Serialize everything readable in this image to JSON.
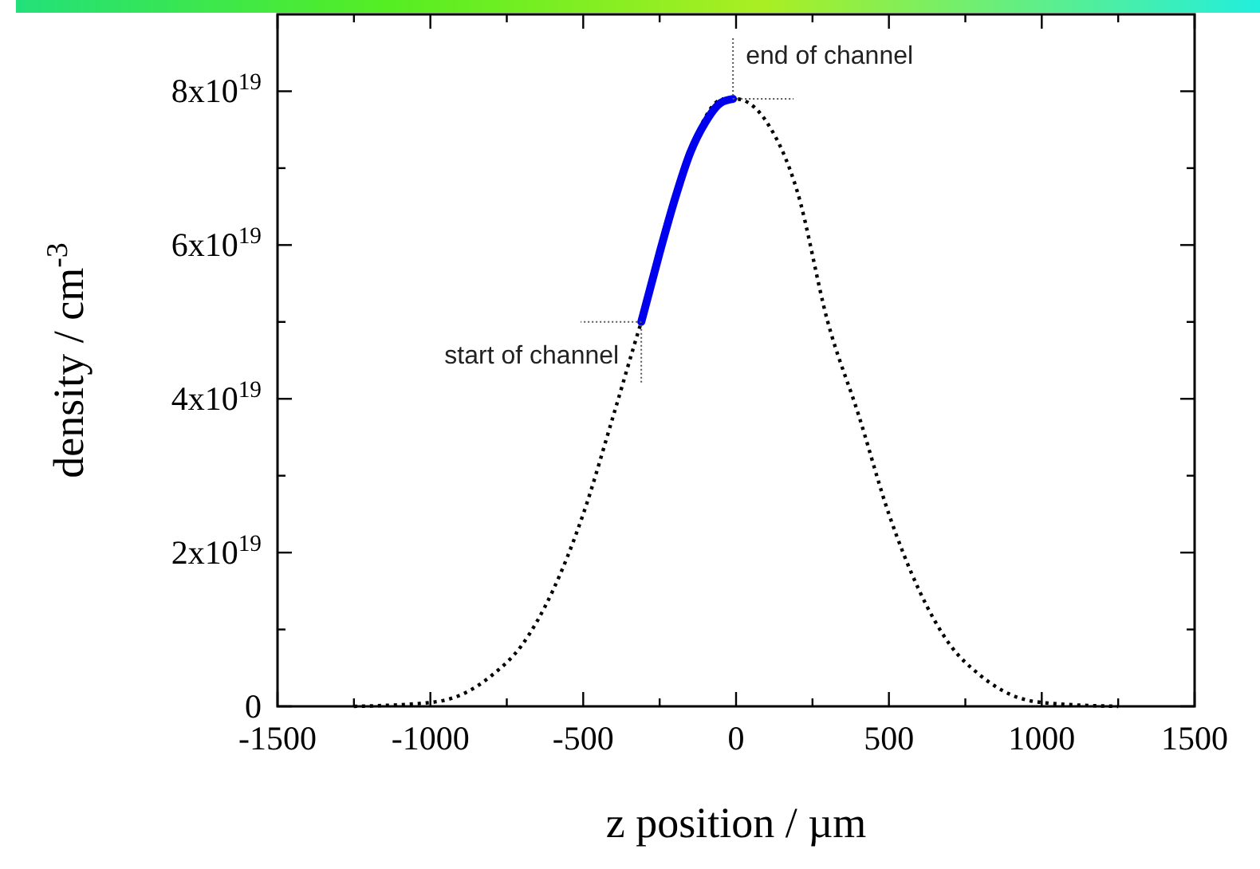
{
  "chart_data": {
    "type": "line",
    "xlabel": "z position / µm",
    "ylabel": "density / cm$^{-3}$",
    "xlim": [
      -1500,
      1500
    ],
    "ylim": [
      0,
      9e+19
    ],
    "xticks": [
      -1500,
      {
        "value": -1250,
        "label": null
      },
      -1000,
      {
        "value": -750,
        "label": null
      },
      -500,
      {
        "value": -250,
        "label": null
      },
      0,
      {
        "value": 250,
        "label": null
      },
      500,
      {
        "value": 750,
        "label": null
      },
      1000,
      {
        "value": 1250,
        "label": null
      },
      1500
    ],
    "yticks": [
      0,
      {
        "value": 1e+19,
        "label": null
      },
      {
        "value": 2e+19,
        "label": "2x10$^{19}$"
      },
      {
        "value": 3e+19,
        "label": null
      },
      {
        "value": 4e+19,
        "label": "4x10$^{19}$"
      },
      {
        "value": 5e+19,
        "label": null
      },
      {
        "value": 6e+19,
        "label": "6x10$^{19}$"
      },
      {
        "value": 7e+19,
        "label": null
      },
      {
        "value": 8e+19,
        "label": "8x10$^{19}$"
      }
    ],
    "series": [
      {
        "color": "#000000",
        "line_style": "dotted",
        "x": [
          -1250,
          -1000,
          -900,
          -800,
          -700,
          -600,
          -500,
          -400,
          -310,
          -200,
          -100,
          -40,
          0,
          100,
          200,
          300,
          400,
          500,
          600,
          700,
          800,
          900,
          1000,
          1250
        ],
        "values": [
          0,
          5e+17,
          1.5e+18,
          4e+18,
          8e+18,
          1.5e+19,
          2.5e+19,
          3.8e+19,
          5e+19,
          null,
          null,
          7.9e+19,
          7.9e+19,
          7.6e+19,
          6.7e+19,
          5e+19,
          3.8e+19,
          2.5e+19,
          1.5e+19,
          8e+18,
          4e+18,
          1.5e+18,
          5e+17,
          0
        ]
      },
      {
        "color": "#0000ee",
        "line_style": "solid",
        "x": [
          -310,
          -250,
          -200,
          -150,
          -100,
          -50,
          -10
        ],
        "values": [
          5e+19,
          5.9e+19,
          6.6e+19,
          7.2e+19,
          7.6e+19,
          7.85e+19,
          7.9e+19
        ]
      }
    ],
    "annotations": [
      {
        "text": "start of channel",
        "x": -310,
        "y": 5e+19
      },
      {
        "text": "end of channel",
        "x": -10,
        "y": 7.9e+19
      }
    ]
  }
}
